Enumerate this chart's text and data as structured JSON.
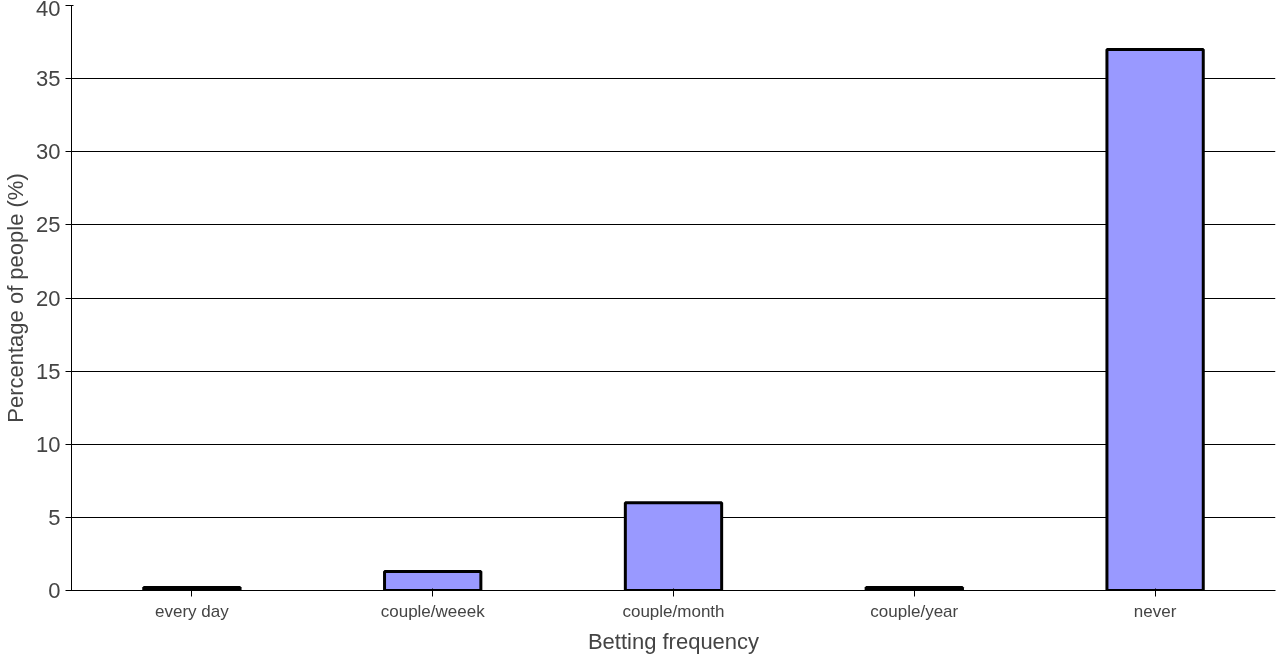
{
  "chart_data": {
    "type": "bar",
    "xlabel": "Betting frequency",
    "ylabel": "Percentage of people (%)",
    "categories": [
      "every day",
      "couple/weeek",
      "couple/month",
      "couple/year",
      "never"
    ],
    "values": [
      0.2,
      1.3,
      6,
      0.2,
      37
    ],
    "color": "#9999ff",
    "ylim": [
      0,
      40
    ],
    "yticks": [
      0,
      5,
      10,
      15,
      20,
      25,
      30,
      35,
      40
    ],
    "grid": "y"
  }
}
